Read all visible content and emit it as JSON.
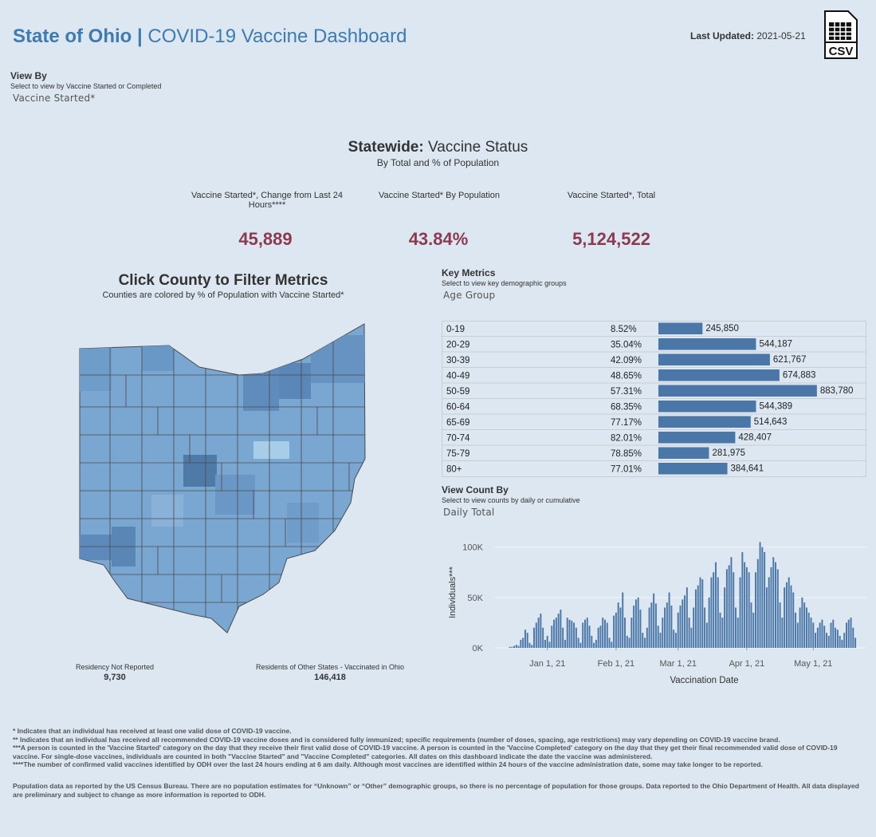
{
  "header": {
    "title_bold": "State of Ohio |",
    "title": "COVID-19 Vaccine Dashboard",
    "last_updated_label": "Last Updated:",
    "last_updated": "2021-05-21",
    "csv_label": "CSV"
  },
  "view_by": {
    "title": "View By",
    "subtitle": "Select to view by Vaccine Started or Completed",
    "selection": "Vaccine Started*"
  },
  "statewide": {
    "title_bold": "Statewide:",
    "title": "Vaccine Status",
    "subtitle": "By Total and % of Population",
    "metrics": [
      {
        "label": "Vaccine Started*, Change from Last 24 Hours****",
        "value": "45,889"
      },
      {
        "label": "Vaccine Started* By Population",
        "value": "43.84%"
      },
      {
        "label": "Vaccine Started*, Total",
        "value": "5,124,522"
      }
    ]
  },
  "map": {
    "title": "Click County to Filter Metrics",
    "subtitle": "Counties are colored by % of Population with Vaccine Started*",
    "residency_not_reported_label": "Residency Not Reported",
    "residency_not_reported": "9,730",
    "other_states_label": "Residents of Other States - Vaccinated in Ohio",
    "other_states": "146,418"
  },
  "key_metrics": {
    "title": "Key Metrics",
    "subtitle": "Select to view key demographic groups",
    "selection": "Age Group"
  },
  "view_count": {
    "title": "View Count By",
    "subtitle": "Select to view counts by daily or cumulative",
    "selection": "Daily Total"
  },
  "chart_data": [
    {
      "type": "hbar",
      "color": "#4a76a8",
      "categories": [
        "0-19",
        "20-29",
        "30-39",
        "40-49",
        "50-59",
        "60-64",
        "65-69",
        "70-74",
        "75-79",
        "80+"
      ],
      "percent_labels": [
        "8.52%",
        "35.04%",
        "42.09%",
        "48.65%",
        "57.31%",
        "68.35%",
        "77.17%",
        "82.01%",
        "78.85%",
        "77.01%"
      ],
      "values": [
        245850,
        544187,
        621767,
        674883,
        883780,
        544389,
        514643,
        428407,
        281975,
        384641
      ],
      "value_labels": [
        "245,850",
        "544,187",
        "621,767",
        "674,883",
        "883,780",
        "544,389",
        "514,643",
        "428,407",
        "281,975",
        "384,641"
      ],
      "xlim": [
        0,
        1000000
      ]
    },
    {
      "type": "bar",
      "color": "#4a76a8",
      "x_label": "Vaccination Date",
      "y_label": "Individuals***",
      "xlim": [
        "2020-12-08",
        "2021-05-25"
      ],
      "ylim": [
        0,
        110000
      ],
      "xticks": [
        {
          "value": "2021-01-01",
          "label": "Jan 1, 21"
        },
        {
          "value": "2021-02-01",
          "label": "Feb 1, 21"
        },
        {
          "value": "2021-03-01",
          "label": "Mar 1, 21"
        },
        {
          "value": "2021-04-01",
          "label": "Apr 1, 21"
        },
        {
          "value": "2021-05-01",
          "label": "May 1, 21"
        }
      ],
      "yticks": [
        {
          "value": 0,
          "label": "0K"
        },
        {
          "value": 50000,
          "label": "50K"
        },
        {
          "value": 100000,
          "label": "100K"
        }
      ],
      "grid": true,
      "x": [
        "2020-12-15",
        "2020-12-16",
        "2020-12-17",
        "2020-12-18",
        "2020-12-19",
        "2020-12-20",
        "2020-12-21",
        "2020-12-22",
        "2020-12-23",
        "2020-12-24",
        "2020-12-25",
        "2020-12-26",
        "2020-12-27",
        "2020-12-28",
        "2020-12-29",
        "2020-12-30",
        "2020-12-31",
        "2021-01-01",
        "2021-01-02",
        "2021-01-03",
        "2021-01-04",
        "2021-01-05",
        "2021-01-06",
        "2021-01-07",
        "2021-01-08",
        "2021-01-09",
        "2021-01-10",
        "2021-01-11",
        "2021-01-12",
        "2021-01-13",
        "2021-01-14",
        "2021-01-15",
        "2021-01-16",
        "2021-01-17",
        "2021-01-18",
        "2021-01-19",
        "2021-01-20",
        "2021-01-21",
        "2021-01-22",
        "2021-01-23",
        "2021-01-24",
        "2021-01-25",
        "2021-01-26",
        "2021-01-27",
        "2021-01-28",
        "2021-01-29",
        "2021-01-30",
        "2021-01-31",
        "2021-02-01",
        "2021-02-02",
        "2021-02-03",
        "2021-02-04",
        "2021-02-05",
        "2021-02-06",
        "2021-02-07",
        "2021-02-08",
        "2021-02-09",
        "2021-02-10",
        "2021-02-11",
        "2021-02-12",
        "2021-02-13",
        "2021-02-14",
        "2021-02-15",
        "2021-02-16",
        "2021-02-17",
        "2021-02-18",
        "2021-02-19",
        "2021-02-20",
        "2021-02-21",
        "2021-02-22",
        "2021-02-23",
        "2021-02-24",
        "2021-02-25",
        "2021-02-26",
        "2021-02-27",
        "2021-02-28",
        "2021-03-01",
        "2021-03-02",
        "2021-03-03",
        "2021-03-04",
        "2021-03-05",
        "2021-03-06",
        "2021-03-07",
        "2021-03-08",
        "2021-03-09",
        "2021-03-10",
        "2021-03-11",
        "2021-03-12",
        "2021-03-13",
        "2021-03-14",
        "2021-03-15",
        "2021-03-16",
        "2021-03-17",
        "2021-03-18",
        "2021-03-19",
        "2021-03-20",
        "2021-03-21",
        "2021-03-22",
        "2021-03-23",
        "2021-03-24",
        "2021-03-25",
        "2021-03-26",
        "2021-03-27",
        "2021-03-28",
        "2021-03-29",
        "2021-03-30",
        "2021-03-31",
        "2021-04-01",
        "2021-04-02",
        "2021-04-03",
        "2021-04-04",
        "2021-04-05",
        "2021-04-06",
        "2021-04-07",
        "2021-04-08",
        "2021-04-09",
        "2021-04-10",
        "2021-04-11",
        "2021-04-12",
        "2021-04-13",
        "2021-04-14",
        "2021-04-15",
        "2021-04-16",
        "2021-04-17",
        "2021-04-18",
        "2021-04-19",
        "2021-04-20",
        "2021-04-21",
        "2021-04-22",
        "2021-04-23",
        "2021-04-24",
        "2021-04-25",
        "2021-04-26",
        "2021-04-27",
        "2021-04-28",
        "2021-04-29",
        "2021-04-30",
        "2021-05-01",
        "2021-05-02",
        "2021-05-03",
        "2021-05-04",
        "2021-05-05",
        "2021-05-06",
        "2021-05-07",
        "2021-05-08",
        "2021-05-09",
        "2021-05-10",
        "2021-05-11",
        "2021-05-12",
        "2021-05-13",
        "2021-05-14",
        "2021-05-15",
        "2021-05-16",
        "2021-05-17",
        "2021-05-18",
        "2021-05-19",
        "2021-05-20"
      ],
      "values": [
        1000,
        1000,
        2000,
        3000,
        2000,
        8000,
        10000,
        18000,
        15000,
        5000,
        3000,
        20000,
        25000,
        30000,
        34000,
        20000,
        8000,
        12000,
        6000,
        22000,
        28000,
        30000,
        34000,
        38000,
        20000,
        8000,
        30000,
        28000,
        27000,
        25000,
        20000,
        10000,
        5000,
        25000,
        28000,
        30000,
        22000,
        12000,
        5000,
        8000,
        20000,
        22000,
        30000,
        28000,
        25000,
        10000,
        6000,
        32000,
        35000,
        45000,
        40000,
        55000,
        30000,
        12000,
        10000,
        30000,
        42000,
        48000,
        50000,
        38000,
        15000,
        10000,
        20000,
        40000,
        45000,
        54000,
        44000,
        22000,
        15000,
        30000,
        40000,
        45000,
        55000,
        42000,
        18000,
        15000,
        35000,
        42000,
        48000,
        52000,
        60000,
        30000,
        20000,
        40000,
        58000,
        62000,
        70000,
        68000,
        40000,
        25000,
        50000,
        70000,
        75000,
        85000,
        70000,
        35000,
        30000,
        60000,
        78000,
        82000,
        90000,
        75000,
        40000,
        30000,
        70000,
        95000,
        85000,
        80000,
        75000,
        45000,
        35000,
        75000,
        88000,
        105000,
        100000,
        95000,
        60000,
        70000,
        80000,
        90000,
        85000,
        78000,
        45000,
        30000,
        60000,
        65000,
        70000,
        62000,
        55000,
        35000,
        25000,
        40000,
        50000,
        45000,
        40000,
        35000,
        30000,
        25000,
        15000,
        20000,
        25000,
        28000,
        22000,
        15000,
        12000,
        25000,
        28000,
        20000,
        18000,
        12000,
        8000,
        15000,
        25000,
        28000,
        30000,
        20000,
        10000
      ]
    }
  ],
  "footnotes": [
    "* Indicates that an individual has received at least one valid dose of COVID-19 vaccine.",
    "** Indicates that an individual has received all recommended COVID-19 vaccine doses and is considered fully immunized; specific requirements (number of doses, spacing, age restrictions) may vary depending on COVID-19 vaccine brand.",
    "***A person is counted in the 'Vaccine Started' category on the day that they receive their first valid dose of COVID-19 vaccine.  A person is counted in the 'Vaccine Completed' category on the day that they get their final recommended valid dose of COVID-19 vaccine. For single-dose vaccines, individuals are counted in both \"Vaccine Started\" and \"Vaccine Completed\" categories. All dates on this dashboard indicate the date the vaccine was administered.",
    "****The number of confirmed valid vaccines identified by ODH over the last 24 hours ending at 6 am daily. Although most vaccines are identified within 24 hours of the vaccine administration date, some may take longer to be reported."
  ],
  "population_note": "Population data as reported by the US Census Bureau. There are no population estimates for “Unknown” or “Other” demographic groups, so there is no percentage of population for those groups.  Data reported to the Ohio Department of Health.  All data displayed are preliminary and subject to change as more information is reported to ODH."
}
